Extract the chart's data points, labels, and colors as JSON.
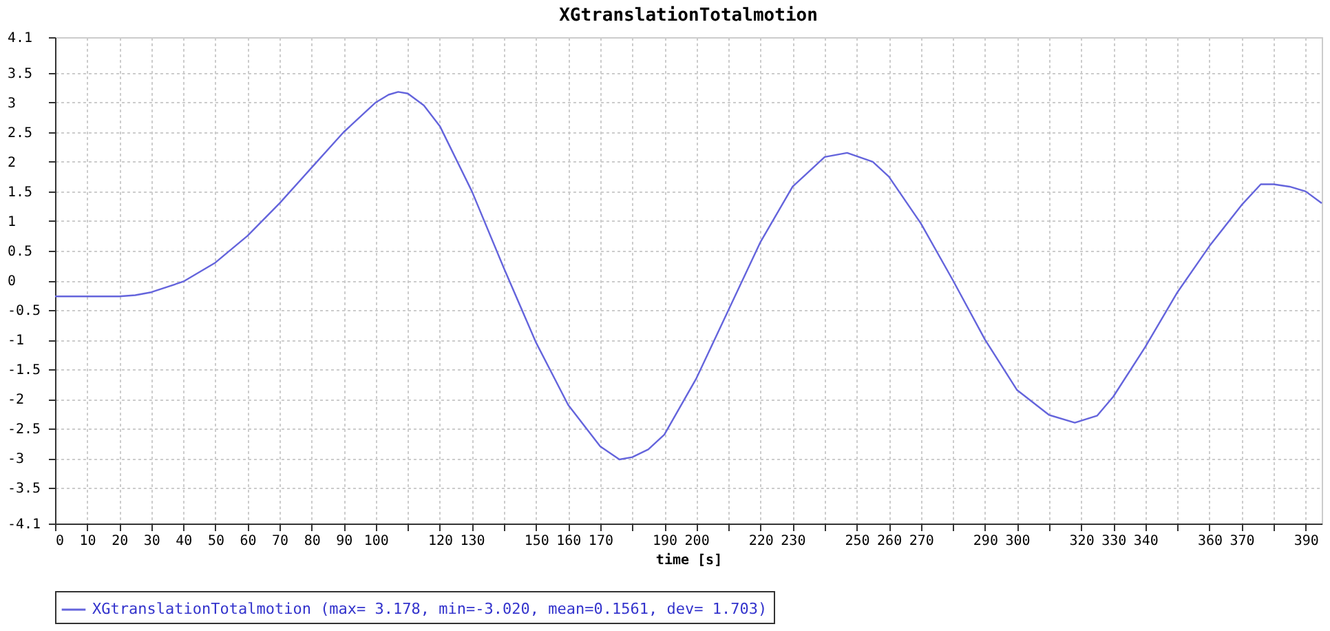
{
  "chart_data": {
    "type": "line",
    "title": "XGtranslationTotalmotion",
    "xlabel": "time [s]",
    "x": [
      0,
      10,
      20,
      25,
      30,
      40,
      50,
      60,
      70,
      80,
      90,
      100,
      104,
      107,
      110,
      115,
      120,
      130,
      140,
      150,
      160,
      170,
      176,
      180,
      185,
      190,
      200,
      210,
      220,
      230,
      240,
      247,
      255,
      260,
      270,
      280,
      290,
      300,
      310,
      318,
      325,
      330,
      340,
      350,
      360,
      370,
      376,
      380,
      385,
      390,
      395
    ],
    "series": [
      {
        "name": "XGtranslationTotalmotion (max= 3.178, min=-3.020, mean=0.1561, dev= 1.703)",
        "color": "#6464dc",
        "values": [
          -0.27,
          -0.27,
          -0.27,
          -0.25,
          -0.2,
          -0.02,
          0.3,
          0.75,
          1.3,
          1.9,
          2.5,
          3.0,
          3.13,
          3.178,
          3.15,
          2.95,
          2.6,
          1.5,
          0.2,
          -1.05,
          -2.1,
          -2.8,
          -3.02,
          -2.98,
          -2.85,
          -2.6,
          -1.65,
          -0.5,
          0.65,
          1.58,
          2.08,
          2.15,
          2.0,
          1.75,
          0.96,
          0.0,
          -1.0,
          -1.85,
          -2.27,
          -2.4,
          -2.28,
          -1.96,
          -1.12,
          -0.2,
          0.58,
          1.27,
          1.62,
          1.62,
          1.58,
          1.5,
          1.3
        ]
      }
    ],
    "xlim": [
      0,
      395
    ],
    "xticks": [
      0,
      10,
      20,
      30,
      40,
      50,
      60,
      70,
      80,
      90,
      100,
      {
        "value": 110,
        "label": null
      },
      120,
      130,
      {
        "value": 140,
        "label": null
      },
      150,
      160,
      170,
      {
        "value": 180,
        "label": null
      },
      190,
      200,
      {
        "value": 210,
        "label": null
      },
      220,
      230,
      {
        "value": 240,
        "label": null
      },
      250,
      260,
      270,
      {
        "value": 280,
        "label": null
      },
      290,
      300,
      {
        "value": 310,
        "label": null
      },
      320,
      330,
      340,
      {
        "value": 350,
        "label": null
      },
      360,
      370,
      {
        "value": 380,
        "label": null
      },
      390
    ],
    "ylim": [
      -4.1,
      4.1
    ],
    "yticks": [
      -4.1,
      -3.5,
      -3,
      -2.5,
      -2,
      -1.5,
      -1,
      -0.5,
      0,
      0.5,
      1,
      1.5,
      2,
      2.5,
      3,
      3.5,
      4.1
    ],
    "grid": true,
    "legend": "bottom",
    "marker": "none",
    "line_style": "solid"
  }
}
